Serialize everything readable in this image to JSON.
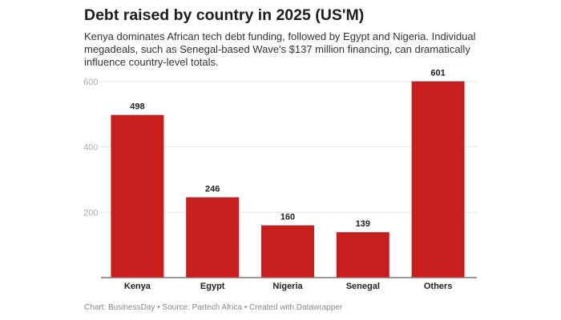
{
  "chart_data": {
    "type": "bar",
    "title": "Debt raised by country in 2025 (US'M)",
    "subtitle": "Kenya dominates African tech debt funding, followed by Egypt and Nigeria. Individual megadeals, such as Senegal-based Wave's $137 million financing, can dramatically influence country-level totals.",
    "categories": [
      "Kenya",
      "Egypt",
      "Nigeria",
      "Senegal",
      "Others"
    ],
    "values": [
      498,
      246,
      160,
      139,
      601
    ],
    "data_labels": [
      "498",
      "246",
      "160",
      "139",
      "601"
    ],
    "ylim": [
      0,
      600
    ],
    "yticks": [
      200,
      400,
      600
    ],
    "ytick_labels": [
      "200",
      "400",
      "600"
    ],
    "grid": true,
    "bar_color": "#c71e1d",
    "footer": "Chart: BusinessDay • Source: Partech Africa • Created with Datawrapper"
  }
}
